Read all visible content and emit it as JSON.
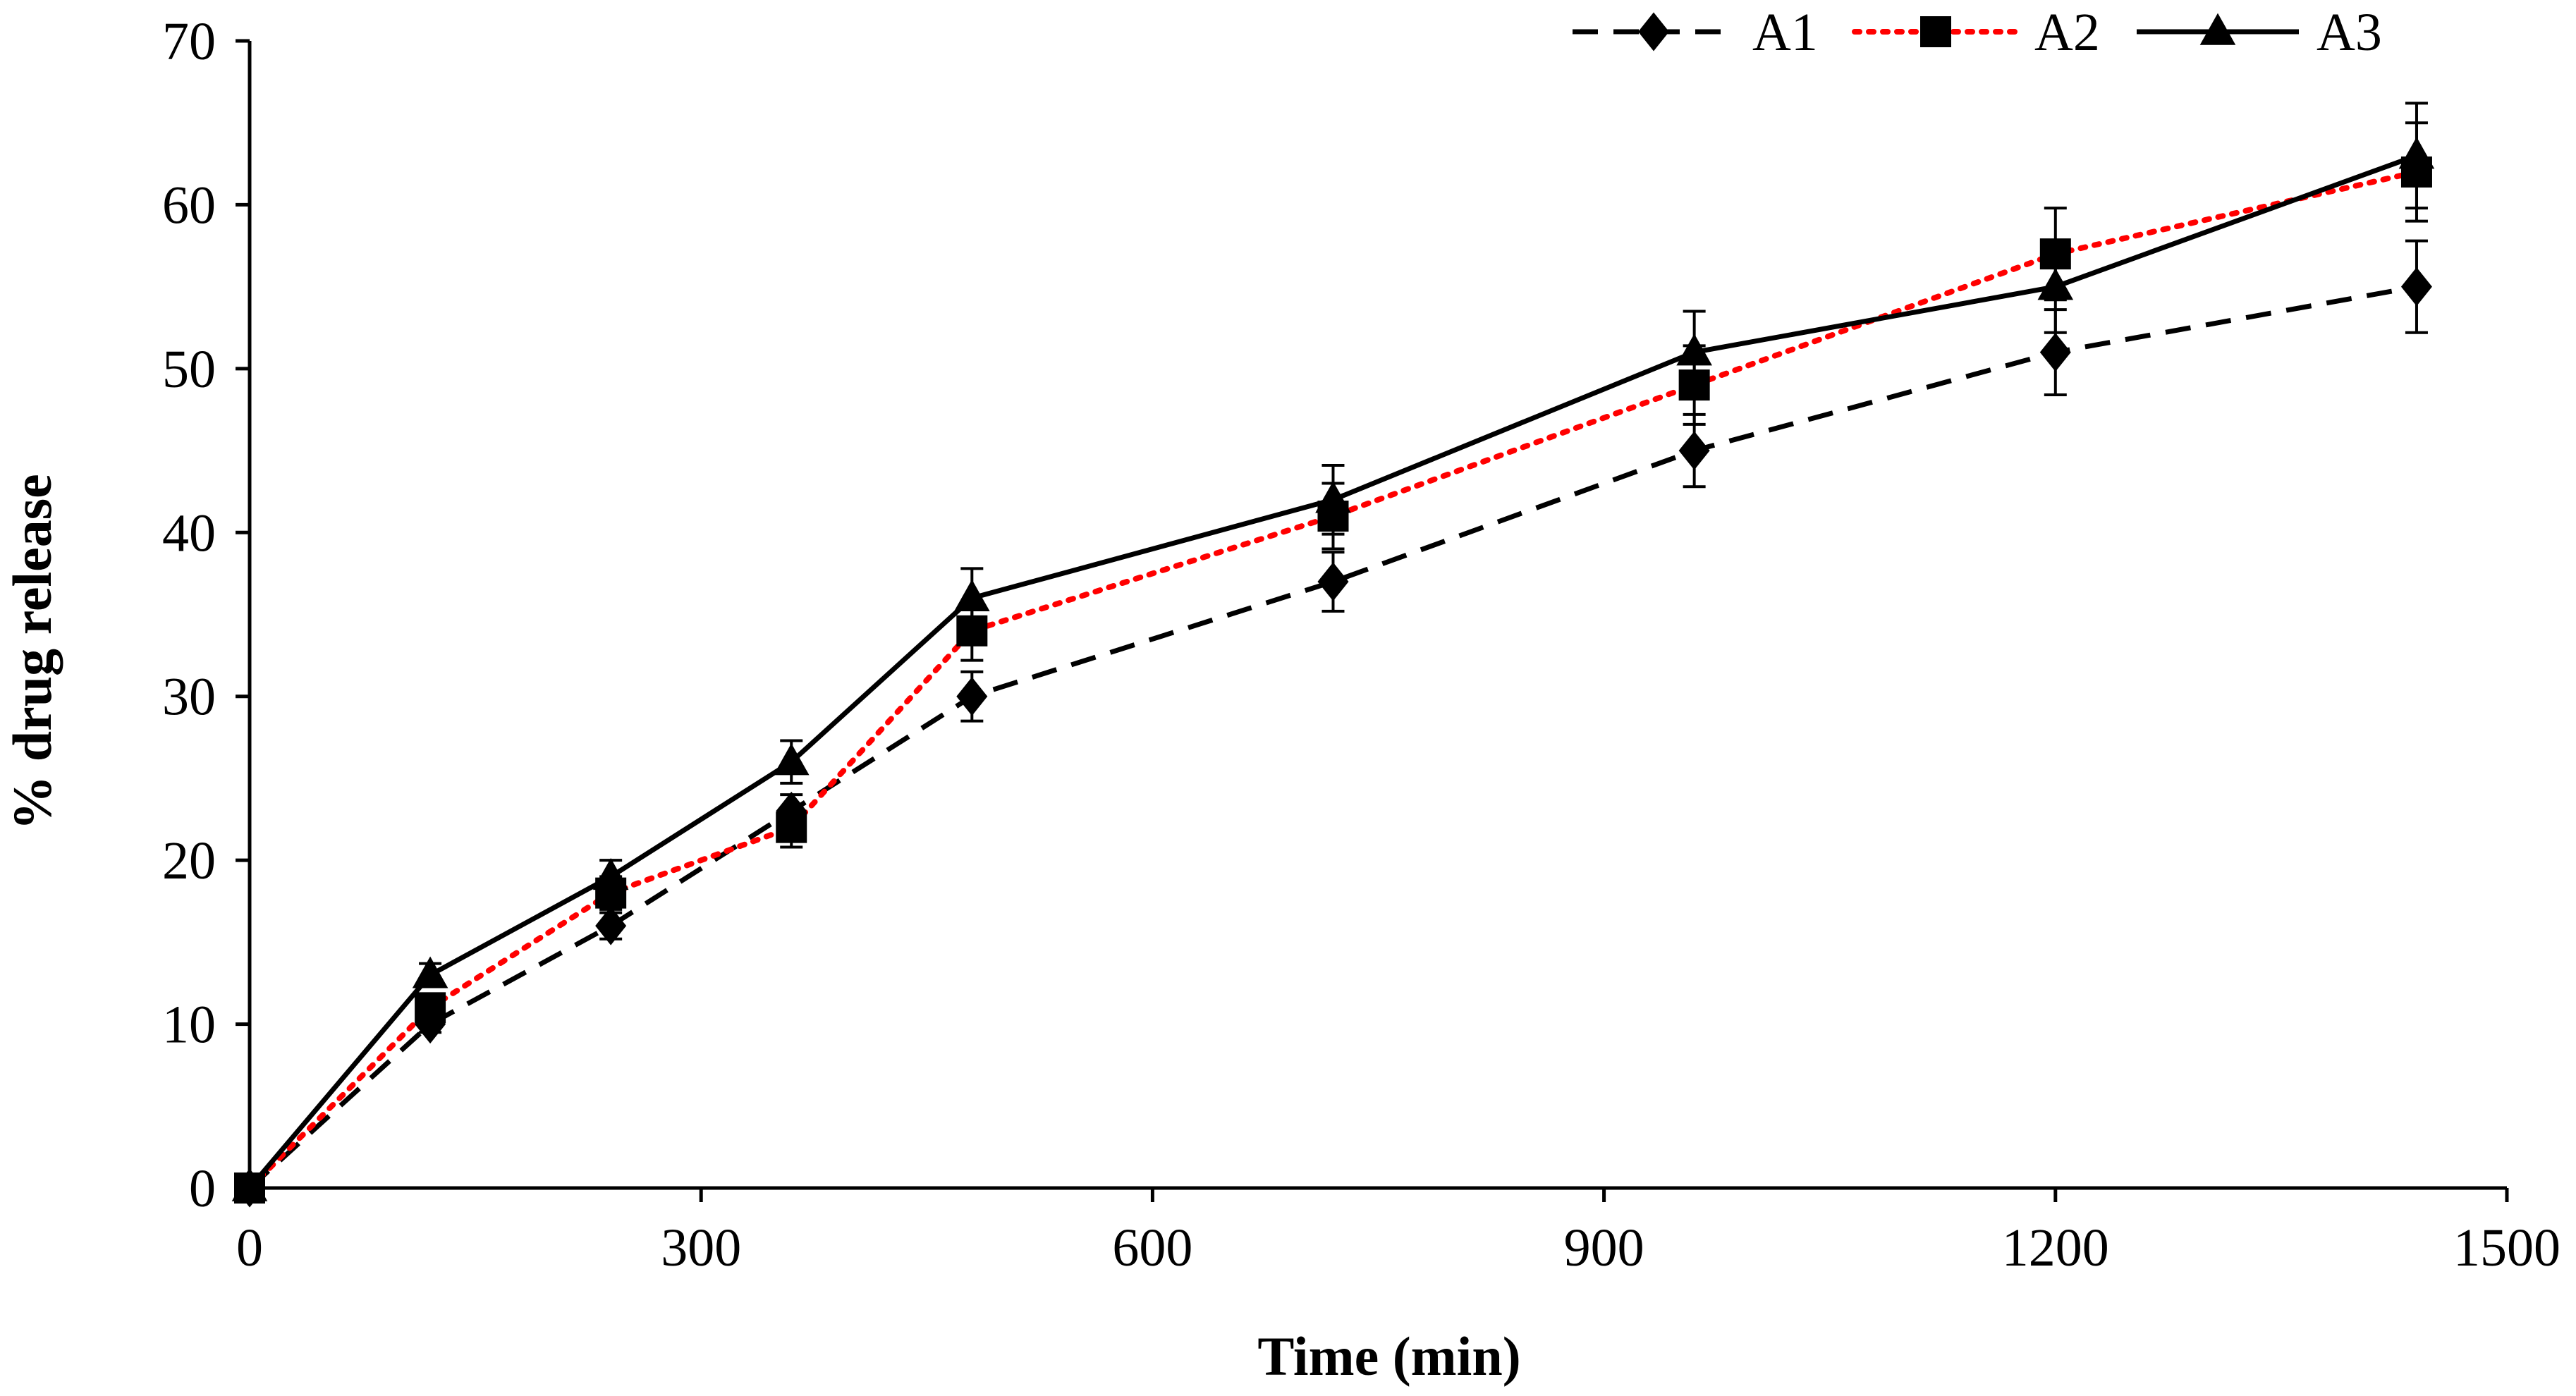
{
  "chart_data": {
    "type": "line",
    "title": "",
    "xlabel": "Time (min)",
    "ylabel": "% drug release",
    "xlim": [
      0,
      1500
    ],
    "ylim": [
      0,
      70
    ],
    "x_ticks": [
      0,
      300,
      600,
      900,
      1200,
      1500
    ],
    "y_ticks": [
      0,
      10,
      20,
      30,
      40,
      50,
      60,
      70
    ],
    "x_tick_labels": [
      "0",
      "300",
      "600",
      "900",
      "1200",
      "1500"
    ],
    "y_tick_labels": [
      "0",
      "10",
      "20",
      "30",
      "40",
      "50",
      "60",
      "70"
    ],
    "grid": false,
    "legend_position": "top-right",
    "x": [
      0,
      120,
      240,
      360,
      480,
      720,
      960,
      1200,
      1440
    ],
    "series": [
      {
        "name": "A1",
        "color": "#000000",
        "line_style": "dashed",
        "marker": "diamond",
        "values": [
          0,
          10,
          16,
          23,
          30,
          37,
          45,
          51,
          55
        ],
        "errors": [
          0,
          0.5,
          0.8,
          1.0,
          1.5,
          1.8,
          2.2,
          2.6,
          2.8
        ]
      },
      {
        "name": "A2",
        "color": "#ff0000",
        "line_style": "dotted",
        "marker": "square",
        "values": [
          0,
          11,
          18,
          22,
          34,
          41,
          49,
          57,
          62
        ],
        "errors": [
          0,
          0.6,
          1.0,
          1.2,
          1.8,
          2.0,
          2.4,
          2.8,
          3.0
        ]
      },
      {
        "name": "A3",
        "color": "#000000",
        "line_style": "solid",
        "marker": "triangle",
        "values": [
          0,
          13,
          19,
          26,
          36,
          42,
          51,
          55,
          63
        ],
        "errors": [
          0,
          0.7,
          1.0,
          1.3,
          1.8,
          2.1,
          2.5,
          2.8,
          3.2
        ]
      }
    ]
  }
}
